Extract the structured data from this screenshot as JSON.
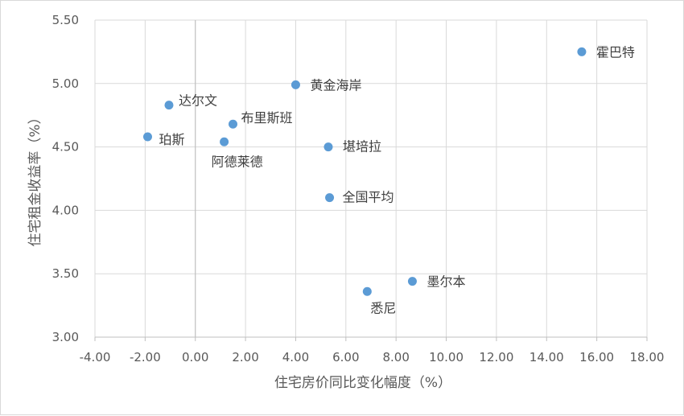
{
  "chart_data": {
    "type": "scatter",
    "xlabel": "住宅房价同比变化幅度（%）",
    "ylabel": "住宅租金收益率（%）",
    "xlim": [
      -4,
      18
    ],
    "ylim": [
      3,
      5.5
    ],
    "x_tick_labels": [
      "-4.00",
      "-2.00",
      "0.00",
      "2.00",
      "4.00",
      "6.00",
      "8.00",
      "10.00",
      "12.00",
      "14.00",
      "16.00",
      "18.00"
    ],
    "y_tick_labels": [
      "3.00",
      "3.50",
      "4.00",
      "4.50",
      "5.00",
      "5.50"
    ],
    "grid": true,
    "marker_color": "#5b9bd5",
    "points": [
      {
        "label": "霍巴特",
        "x": 15.4,
        "y": 5.25
      },
      {
        "label": "黄金海岸",
        "x": 4.0,
        "y": 4.99
      },
      {
        "label": "达尔文",
        "x": -1.05,
        "y": 4.83
      },
      {
        "label": "布里斯班",
        "x": 1.5,
        "y": 4.68
      },
      {
        "label": "珀斯",
        "x": -1.9,
        "y": 4.58
      },
      {
        "label": "阿德莱德",
        "x": 1.15,
        "y": 4.54
      },
      {
        "label": "堪培拉",
        "x": 5.3,
        "y": 4.5
      },
      {
        "label": "全国平均",
        "x": 5.35,
        "y": 4.1
      },
      {
        "label": "墨尔本",
        "x": 8.65,
        "y": 3.44
      },
      {
        "label": "悉尼",
        "x": 6.85,
        "y": 3.36
      }
    ]
  }
}
